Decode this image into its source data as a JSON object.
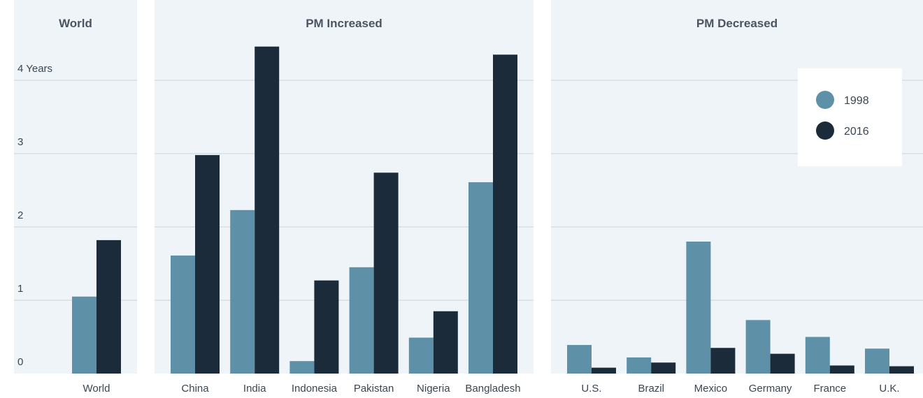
{
  "colors": {
    "series_1998": "#5e91a8",
    "series_2016": "#1b2b3a",
    "panel_bg": "#eff4f8",
    "grid": "#c9d4dc",
    "text": "#3a4651",
    "title": "#4a5561"
  },
  "legend": {
    "placement": "top-right",
    "entries": [
      "1998",
      "2016"
    ]
  },
  "y_ticks": [
    "0",
    "1",
    "2",
    "3",
    "4 Years"
  ],
  "chart_data": {
    "type": "bar",
    "ylim": [
      0,
      4.5
    ],
    "series_names": [
      "1998",
      "2016"
    ],
    "panels": [
      {
        "title": "World",
        "categories": [
          "World"
        ],
        "series": [
          {
            "name": "1998",
            "values": [
              1.05
            ]
          },
          {
            "name": "2016",
            "values": [
              1.82
            ]
          }
        ]
      },
      {
        "title": "PM Increased",
        "categories": [
          "China",
          "India",
          "Indonesia",
          "Pakistan",
          "Nigeria",
          "Bangladesh"
        ],
        "series": [
          {
            "name": "1998",
            "values": [
              1.61,
              2.23,
              0.17,
              1.45,
              0.49,
              2.61
            ]
          },
          {
            "name": "2016",
            "values": [
              2.98,
              4.46,
              1.27,
              2.74,
              0.85,
              4.35
            ]
          }
        ]
      },
      {
        "title": "PM Decreased",
        "categories": [
          "U.S.",
          "Brazil",
          "Mexico",
          "Germany",
          "France",
          "U.K."
        ],
        "series": [
          {
            "name": "1998",
            "values": [
              0.39,
              0.22,
              1.8,
              0.73,
              0.5,
              0.34
            ]
          },
          {
            "name": "2016",
            "values": [
              0.08,
              0.15,
              0.35,
              0.27,
              0.11,
              0.1
            ]
          }
        ]
      }
    ]
  }
}
